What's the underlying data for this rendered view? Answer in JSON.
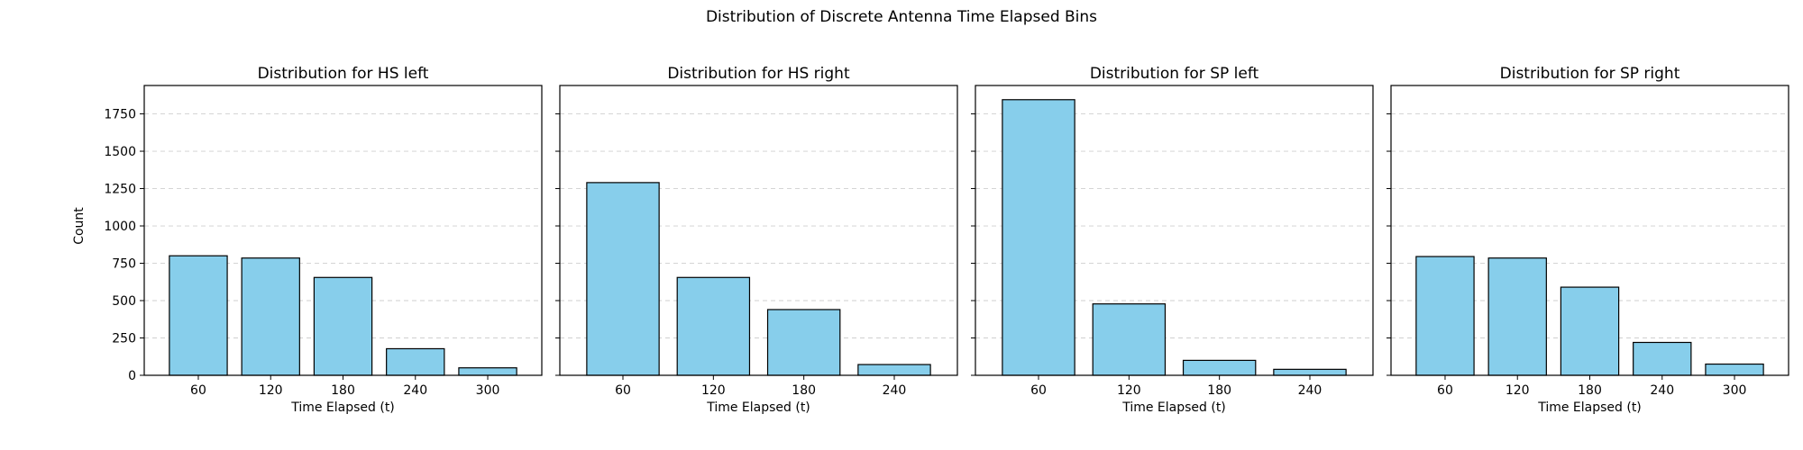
{
  "chart_data": {
    "title": "Distribution of Discrete Antenna Time Elapsed Bins",
    "ylabel": "Count",
    "ylim": [
      0,
      1940
    ],
    "yticks": [
      0,
      250,
      500,
      750,
      1000,
      1250,
      1500,
      1750
    ],
    "grid": "y-dashed",
    "bar_color": "#87CEEB",
    "edge_color": "#000000",
    "subplots": [
      {
        "type": "bar",
        "title": "Distribution for HS left",
        "xlabel": "Time Elapsed (t)",
        "categories": [
          "60",
          "120",
          "180",
          "240",
          "300"
        ],
        "values": [
          800,
          785,
          655,
          178,
          50
        ]
      },
      {
        "type": "bar",
        "title": "Distribution for HS right",
        "xlabel": "Time Elapsed (t)",
        "categories": [
          "60",
          "120",
          "180",
          "240"
        ],
        "values": [
          1290,
          655,
          440,
          72
        ]
      },
      {
        "type": "bar",
        "title": "Distribution for SP left",
        "xlabel": "Time Elapsed (t)",
        "categories": [
          "60",
          "120",
          "180",
          "240"
        ],
        "values": [
          1845,
          478,
          100,
          40
        ]
      },
      {
        "type": "bar",
        "title": "Distribution for SP right",
        "xlabel": "Time Elapsed (t)",
        "categories": [
          "60",
          "120",
          "180",
          "240",
          "300"
        ],
        "values": [
          795,
          785,
          590,
          220,
          75
        ]
      }
    ]
  }
}
